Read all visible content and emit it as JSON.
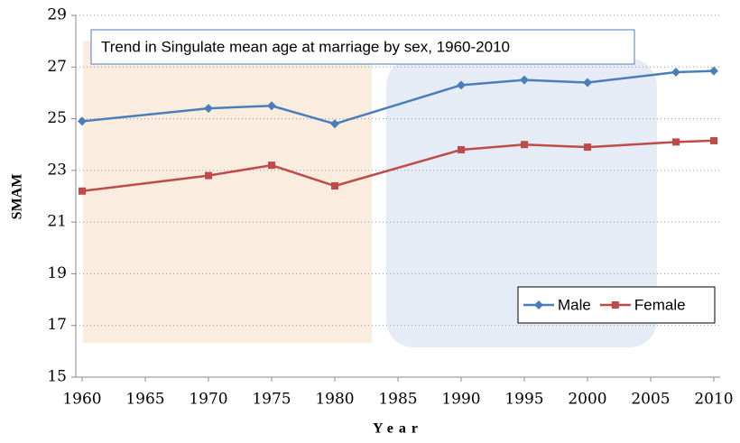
{
  "chart_data": {
    "type": "line",
    "title": "Trend in Singulate mean age at marriage by sex, 1960-2010",
    "x_label": "Year",
    "y_label": "SMAM",
    "x": [
      1960,
      1970,
      1975,
      1980,
      1990,
      1995,
      2000,
      2007,
      2010
    ],
    "series": [
      {
        "name": "Male",
        "color": "#4a7ebb",
        "marker": "diamond",
        "values": [
          24.9,
          25.4,
          25.5,
          24.8,
          26.3,
          26.5,
          26.4,
          26.8,
          26.85
        ]
      },
      {
        "name": "Female",
        "color": "#be4b48",
        "marker": "square",
        "values": [
          22.2,
          22.8,
          23.2,
          22.4,
          23.8,
          24.0,
          23.9,
          24.1,
          24.15
        ]
      }
    ],
    "xlim": [
      1959.5,
      2010.5
    ],
    "xticks": [
      1960,
      1965,
      1970,
      1975,
      1980,
      1985,
      1990,
      1995,
      2000,
      2005,
      2010
    ],
    "ylim": [
      15,
      29
    ],
    "yticks": [
      15,
      17,
      19,
      21,
      23,
      25,
      27,
      29
    ],
    "grid": true,
    "legend": "lower right"
  }
}
